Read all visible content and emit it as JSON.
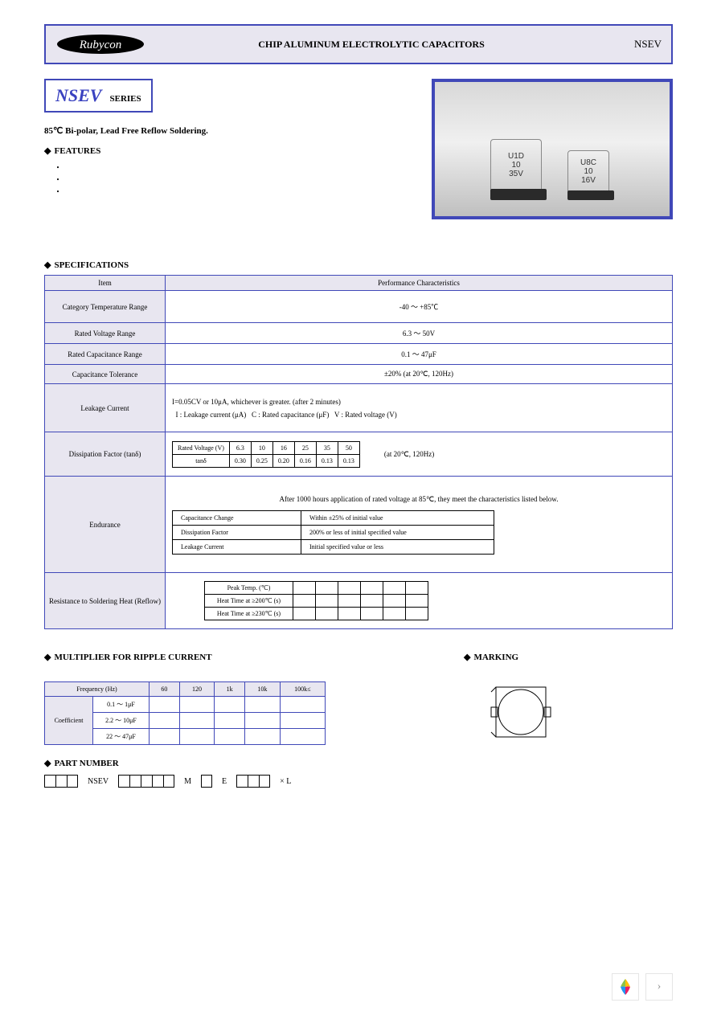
{
  "header": {
    "title": "CHIP ALUMINUM ELECTROLYTIC CAPACITORS",
    "series": "NSEV",
    "logo_text": "Rubycon"
  },
  "series_box": {
    "name": "NSEV",
    "label": "SERIES"
  },
  "subtitle": "85℃ Bi-polar, Lead Free Reflow Soldering.",
  "features_head": "FEATURES",
  "spec_head": "SPECIFICATIONS",
  "cap_marks": {
    "big": [
      "U1D",
      "10",
      "35V"
    ],
    "small": [
      "U8C",
      "10",
      "16V"
    ]
  },
  "spec_rows": [
    {
      "label": "Item",
      "value": "Performance Characteristics",
      "header": true
    },
    {
      "label": "Category Temperature Range",
      "value": "-40 ～ +85℃"
    },
    {
      "label": "Rated Voltage Range",
      "value": "6.3 ～ 50V"
    },
    {
      "label": "Rated Capacitance Range",
      "value": "0.1 ～ 47μF"
    },
    {
      "label": "Capacitance Tolerance",
      "value": "±20% (at 20℃, 120Hz)"
    }
  ],
  "leakage": {
    "label": "Leakage Current",
    "line1": "I=0.05CV or 10μA, whichever is greater. (after 2 minutes)",
    "line2": "  I : Leakage current (μA)   C : Rated capacitance (μF)   V : Rated voltage (V)"
  },
  "tand": {
    "label": "Dissipation Factor (tanδ)",
    "note": "(at 20℃, 120Hz)",
    "header": [
      "Rated Voltage (V)",
      "6.3",
      "10",
      "16",
      "25",
      "35",
      "50"
    ],
    "row": [
      "tanδ",
      "0.30",
      "0.25",
      "0.20",
      "0.16",
      "0.13",
      "0.13"
    ]
  },
  "endurance": {
    "label": "Endurance",
    "intro": "After 1000 hours application of rated voltage at 85℃, they meet the characteristics listed below.",
    "rows": [
      [
        "Capacitance Change",
        "Within ±25% of initial value"
      ],
      [
        "Dissipation Factor",
        "200% or less of initial specified value"
      ],
      [
        "Leakage Current",
        "Initial specified value or less"
      ]
    ]
  },
  "reflow": {
    "label": "Resistance to Soldering Heat (Reflow)",
    "rows": [
      [
        "Peak Temp. (℃)",
        "",
        "",
        "",
        "",
        "",
        ""
      ],
      [
        "Heat Time at ≥200℃ (s)",
        "",
        "",
        "",
        "",
        "",
        ""
      ],
      [
        "Heat Time at ≥230℃ (s)",
        "",
        "",
        "",
        "",
        "",
        ""
      ]
    ]
  },
  "ripple": {
    "head": "MULTIPLIER FOR RIPPLE CURRENT",
    "cols": [
      "Frequency (Hz)",
      "60",
      "120",
      "1k",
      "10k",
      "100k≤"
    ],
    "rows": [
      [
        "0.1 ～ 1μF",
        "",
        "",
        "",
        "",
        ""
      ],
      [
        "2.2 ～ 10μF",
        "",
        "",
        "",
        "",
        ""
      ],
      [
        "22 ～ 47μF",
        "",
        "",
        "",
        "",
        ""
      ]
    ],
    "rowspan_label": "Coefficient"
  },
  "marking_head": "MARKING",
  "pn_head": "PART NUMBER",
  "pn": {
    "groups": [
      3,
      5,
      1,
      3
    ],
    "tail": "× L",
    "sep": "NSEV"
  },
  "colors": {
    "brand_blue": "#4048b8",
    "panel_bg": "#e8e6f0"
  }
}
